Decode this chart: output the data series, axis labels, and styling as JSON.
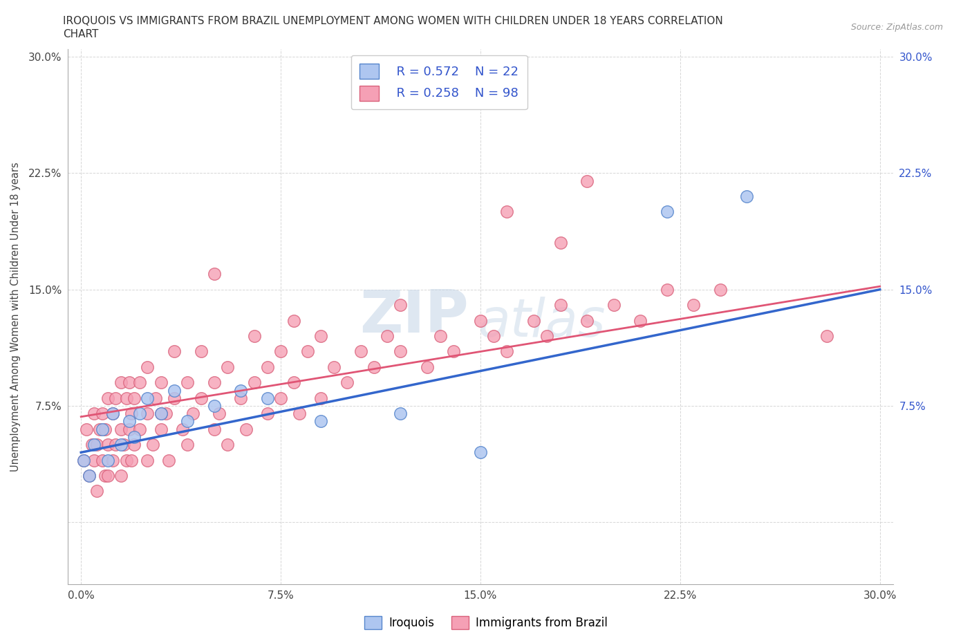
{
  "title_line1": "IROQUOIS VS IMMIGRANTS FROM BRAZIL UNEMPLOYMENT AMONG WOMEN WITH CHILDREN UNDER 18 YEARS CORRELATION",
  "title_line2": "CHART",
  "source_text": "Source: ZipAtlas.com",
  "ylabel": "Unemployment Among Women with Children Under 18 years",
  "xlim": [
    -0.005,
    0.305
  ],
  "ylim": [
    -0.04,
    0.305
  ],
  "xticks": [
    0.0,
    0.075,
    0.15,
    0.225,
    0.3
  ],
  "yticks": [
    0.0,
    0.075,
    0.15,
    0.225,
    0.3
  ],
  "iroquois_color": "#aec6f0",
  "brazil_color": "#f5a0b5",
  "iroquois_edge": "#5585cc",
  "brazil_edge": "#d9607a",
  "trendline_iroquois": "#3366cc",
  "trendline_brazil": "#e05575",
  "watermark_zip": "ZIP",
  "watermark_atlas": "atlas",
  "legend_R_iroquois": "R = 0.572",
  "legend_N_iroquois": "N = 22",
  "legend_R_brazil": "R = 0.258",
  "legend_N_brazil": "N = 98",
  "legend_color": "#3355cc",
  "iroquois_x": [
    0.001,
    0.003,
    0.005,
    0.008,
    0.01,
    0.012,
    0.015,
    0.018,
    0.02,
    0.022,
    0.025,
    0.03,
    0.035,
    0.04,
    0.05,
    0.06,
    0.07,
    0.09,
    0.12,
    0.15,
    0.22,
    0.25
  ],
  "iroquois_y": [
    0.04,
    0.03,
    0.05,
    0.06,
    0.04,
    0.07,
    0.05,
    0.065,
    0.055,
    0.07,
    0.08,
    0.07,
    0.085,
    0.065,
    0.075,
    0.085,
    0.08,
    0.065,
    0.07,
    0.045,
    0.2,
    0.21
  ],
  "brazil_x": [
    0.001,
    0.002,
    0.003,
    0.004,
    0.005,
    0.005,
    0.006,
    0.006,
    0.007,
    0.008,
    0.008,
    0.009,
    0.009,
    0.01,
    0.01,
    0.01,
    0.012,
    0.012,
    0.013,
    0.013,
    0.015,
    0.015,
    0.015,
    0.016,
    0.017,
    0.017,
    0.018,
    0.018,
    0.019,
    0.019,
    0.02,
    0.02,
    0.022,
    0.022,
    0.025,
    0.025,
    0.025,
    0.027,
    0.028,
    0.03,
    0.03,
    0.032,
    0.033,
    0.035,
    0.035,
    0.038,
    0.04,
    0.04,
    0.042,
    0.045,
    0.045,
    0.05,
    0.05,
    0.052,
    0.055,
    0.055,
    0.06,
    0.062,
    0.065,
    0.065,
    0.07,
    0.07,
    0.075,
    0.075,
    0.08,
    0.082,
    0.085,
    0.09,
    0.09,
    0.095,
    0.1,
    0.105,
    0.11,
    0.115,
    0.12,
    0.13,
    0.135,
    0.14,
    0.15,
    0.155,
    0.16,
    0.17,
    0.175,
    0.18,
    0.19,
    0.2,
    0.21,
    0.22,
    0.23,
    0.24,
    0.05,
    0.03,
    0.12,
    0.16,
    0.08,
    0.18,
    0.19,
    0.28
  ],
  "brazil_y": [
    0.04,
    0.06,
    0.03,
    0.05,
    0.04,
    0.07,
    0.05,
    0.02,
    0.06,
    0.04,
    0.07,
    0.03,
    0.06,
    0.05,
    0.03,
    0.08,
    0.04,
    0.07,
    0.05,
    0.08,
    0.03,
    0.06,
    0.09,
    0.05,
    0.04,
    0.08,
    0.06,
    0.09,
    0.04,
    0.07,
    0.05,
    0.08,
    0.06,
    0.09,
    0.04,
    0.07,
    0.1,
    0.05,
    0.08,
    0.06,
    0.09,
    0.07,
    0.04,
    0.08,
    0.11,
    0.06,
    0.05,
    0.09,
    0.07,
    0.08,
    0.11,
    0.06,
    0.09,
    0.07,
    0.05,
    0.1,
    0.08,
    0.06,
    0.09,
    0.12,
    0.07,
    0.1,
    0.08,
    0.11,
    0.09,
    0.07,
    0.11,
    0.08,
    0.12,
    0.1,
    0.09,
    0.11,
    0.1,
    0.12,
    0.11,
    0.1,
    0.12,
    0.11,
    0.13,
    0.12,
    0.11,
    0.13,
    0.12,
    0.14,
    0.13,
    0.14,
    0.13,
    0.15,
    0.14,
    0.15,
    0.16,
    0.07,
    0.14,
    0.2,
    0.13,
    0.18,
    0.22,
    0.12
  ],
  "background_color": "#ffffff",
  "grid_color": "#cccccc"
}
